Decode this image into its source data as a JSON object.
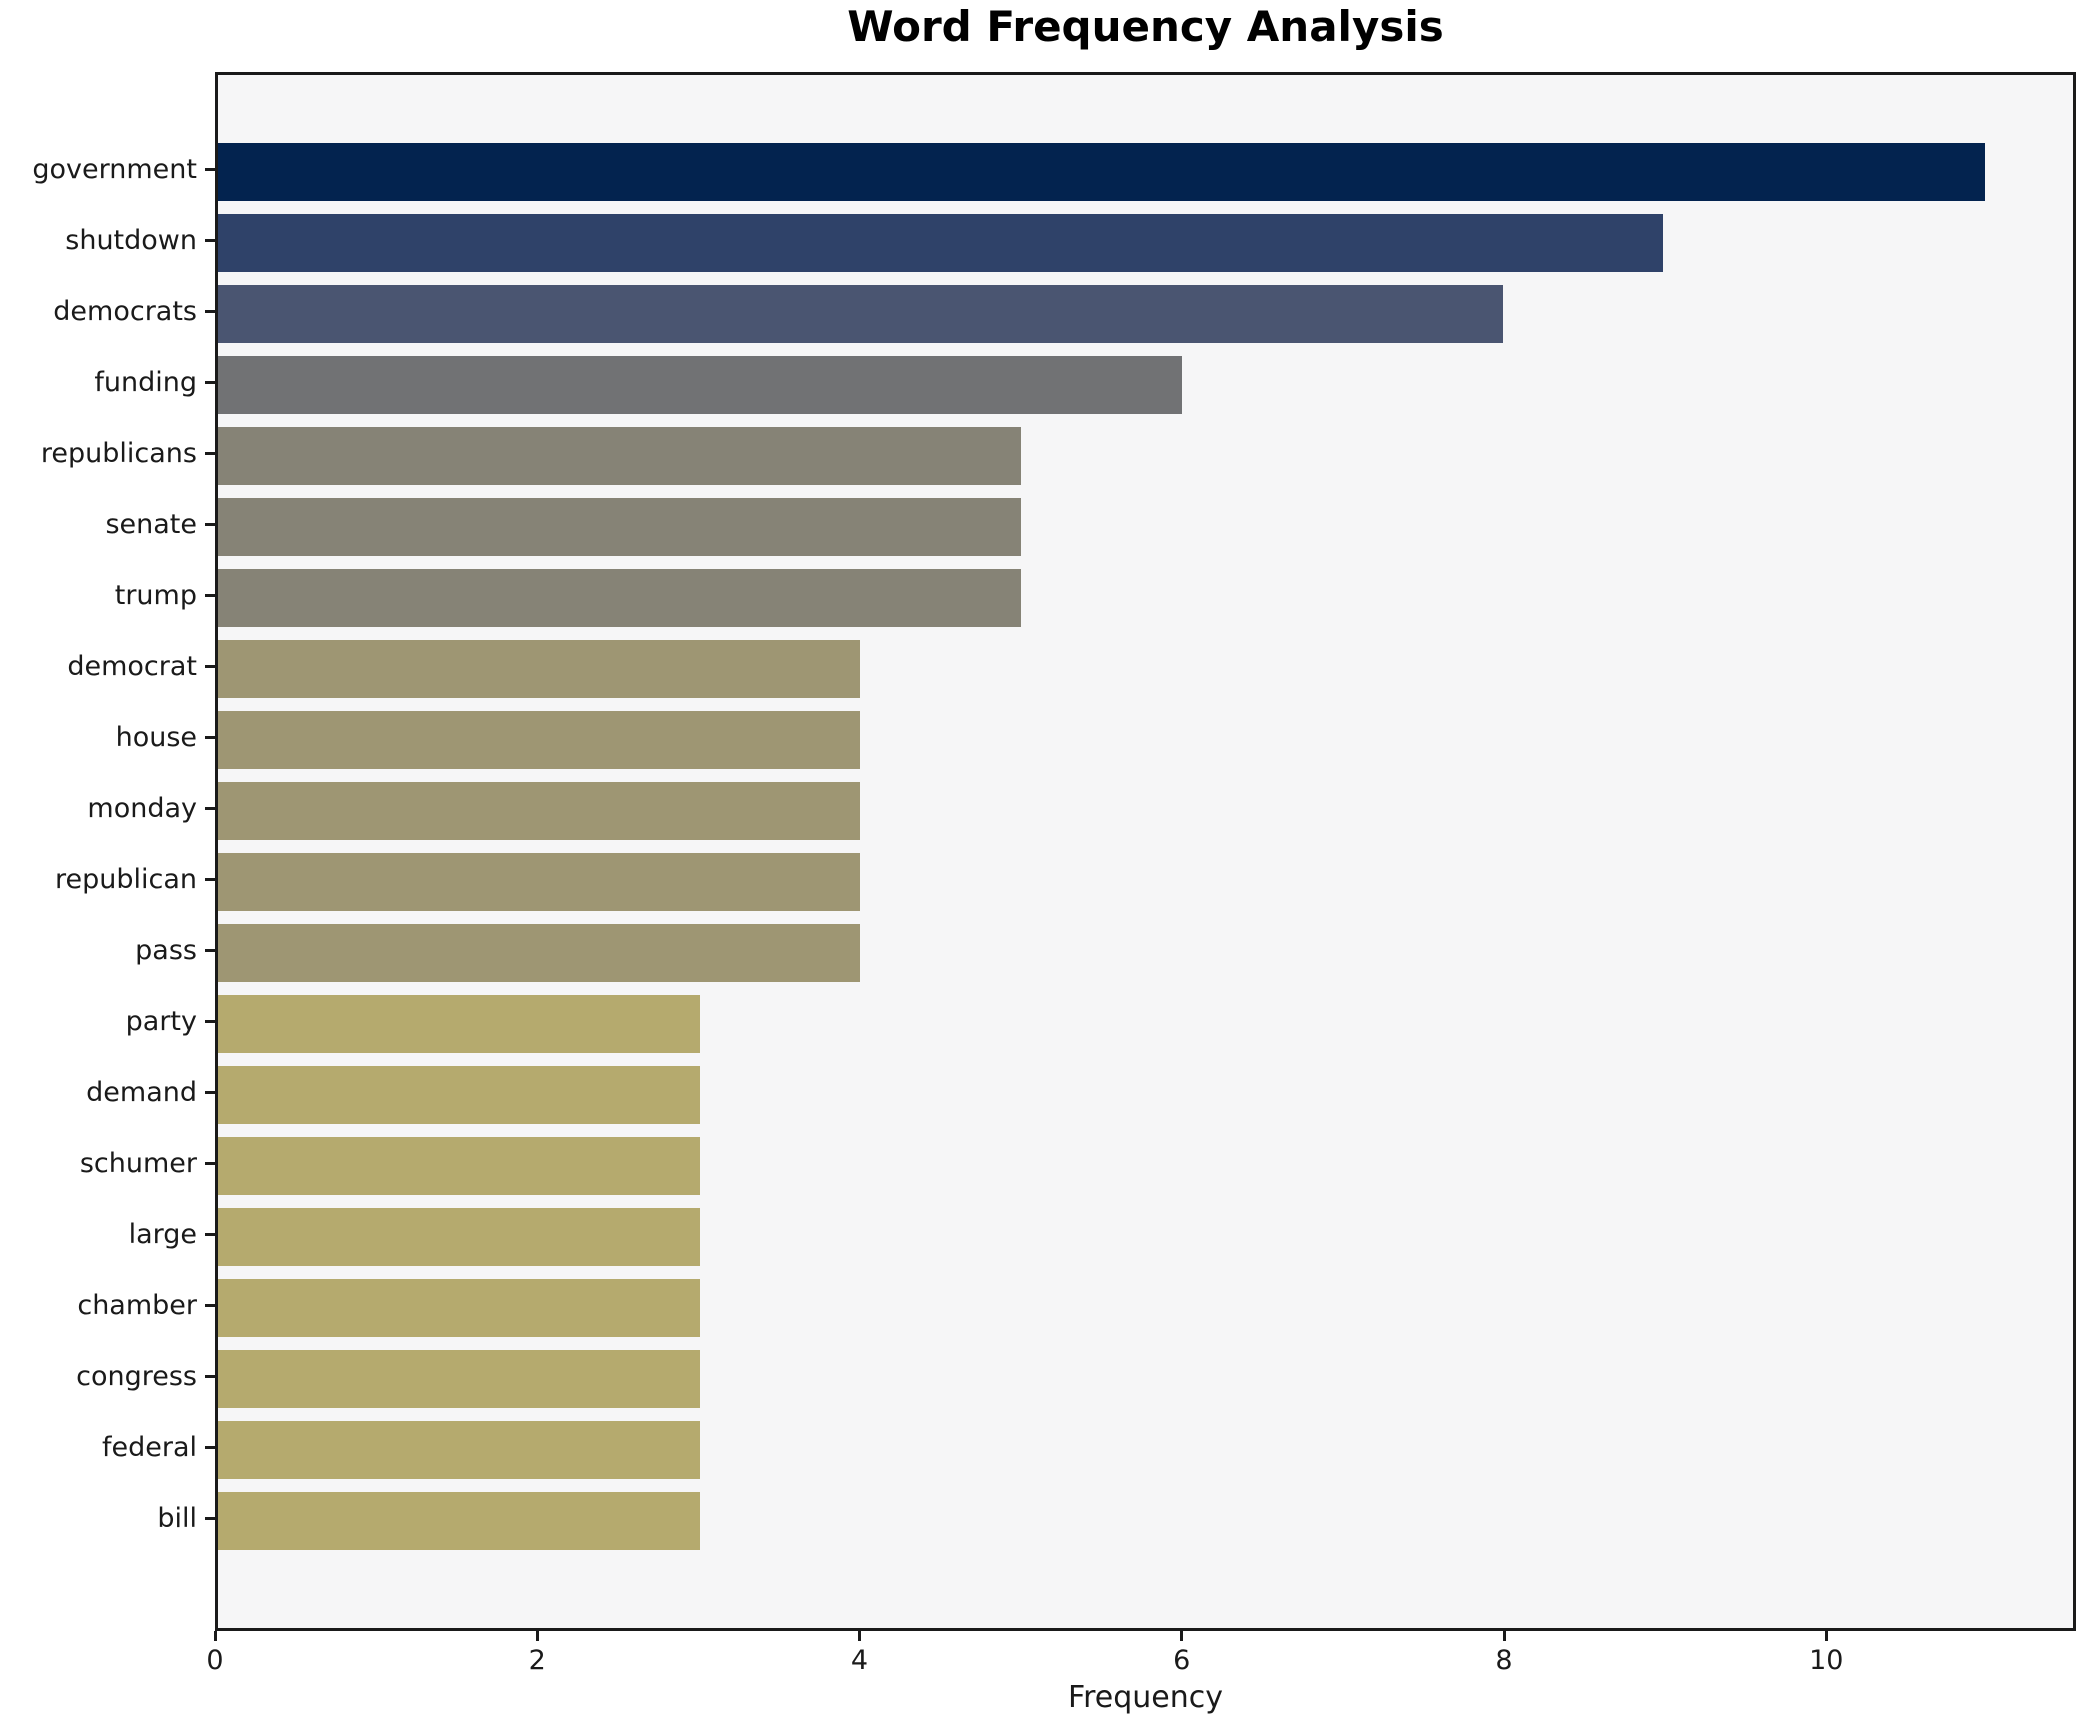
{
  "title": "Word Frequency Analysis",
  "xlabel": "Frequency",
  "colors": {
    "figure_bg": "#ffffff",
    "plot_bg": "#f6f6f7",
    "spine": "#1a1a1a",
    "text": "#1a1a1a"
  },
  "chart_data": {
    "type": "bar",
    "orientation": "horizontal",
    "title": "Word Frequency Analysis",
    "xlabel": "Frequency",
    "ylabel": "",
    "grid": false,
    "legend": null,
    "categories": [
      "government",
      "shutdown",
      "democrats",
      "funding",
      "republicans",
      "senate",
      "trump",
      "democrat",
      "house",
      "monday",
      "republican",
      "pass",
      "party",
      "demand",
      "schumer",
      "large",
      "chamber",
      "congress",
      "federal",
      "bill"
    ],
    "values": [
      11,
      9,
      8,
      6,
      5,
      5,
      5,
      4,
      4,
      4,
      4,
      4,
      3,
      3,
      3,
      3,
      3,
      3,
      3,
      3
    ],
    "bar_colors": [
      "#03234f",
      "#2f4269",
      "#4a5571",
      "#717274",
      "#868376",
      "#868376",
      "#868376",
      "#9e9673",
      "#9e9673",
      "#9e9673",
      "#9e9673",
      "#9e9673",
      "#b5aa6e",
      "#b5aa6e",
      "#b5aa6e",
      "#b5aa6e",
      "#b5aa6e",
      "#b5aa6e",
      "#b5aa6e",
      "#b5aa6e"
    ],
    "xlim": [
      0,
      11.55
    ],
    "xticks": [
      0,
      2,
      4,
      6,
      8,
      10
    ]
  }
}
